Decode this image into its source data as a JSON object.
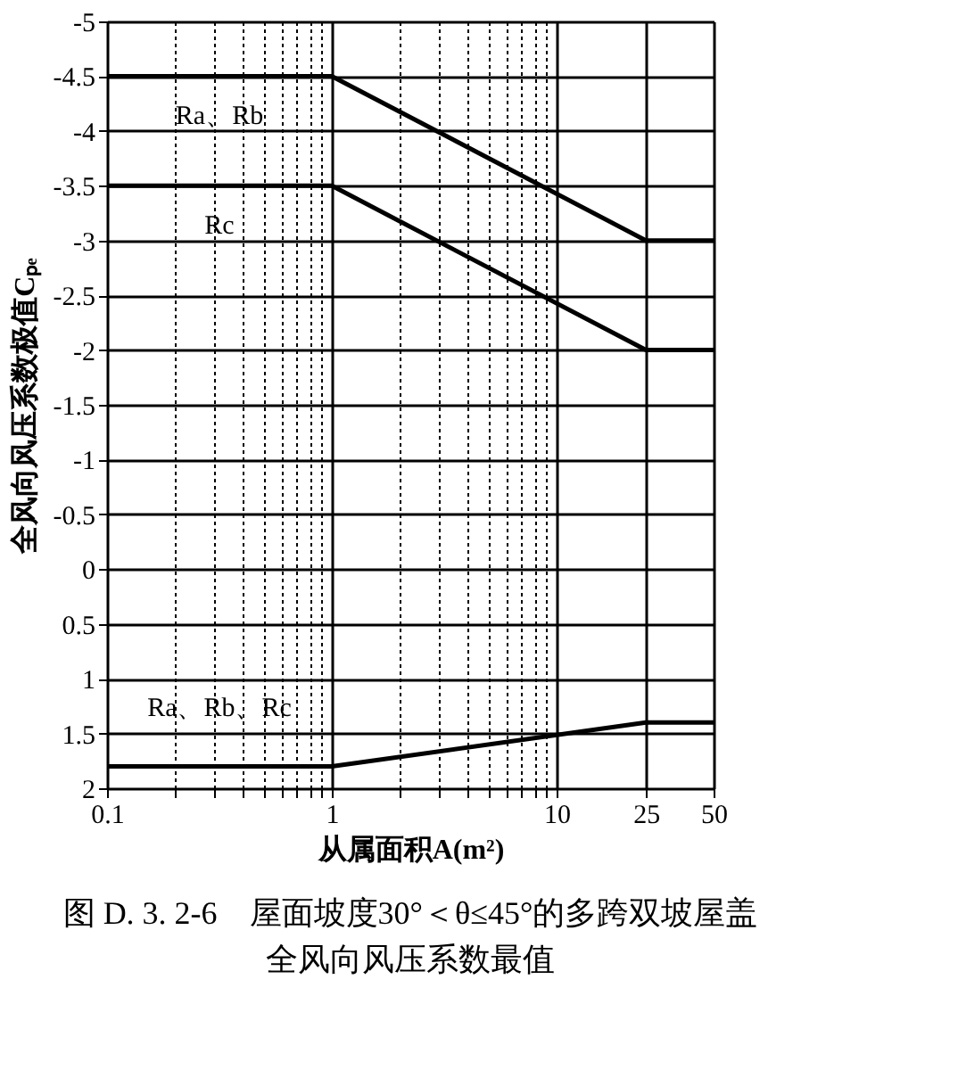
{
  "chart_data": {
    "type": "line",
    "title": "图 D. 3. 2-6　屋面坡度30°＜θ≤45°的多跨双坡屋盖全风向风压系数最值",
    "xlabel": "从属面积A(m²)",
    "ylabel": "全风向风压系数极值Cₚₑ",
    "log": "x",
    "xlim": [
      0.1,
      50
    ],
    "xticks": [
      0.1,
      {
        "value": 0.2,
        "label": null
      },
      {
        "value": 0.3,
        "label": null
      },
      {
        "value": 0.4,
        "label": null
      },
      {
        "value": 0.5,
        "label": null
      },
      {
        "value": 0.6,
        "label": null
      },
      {
        "value": 0.7,
        "label": null
      },
      {
        "value": 0.8,
        "label": null
      },
      {
        "value": 0.9,
        "label": null
      },
      1,
      {
        "value": 2,
        "label": null
      },
      {
        "value": 3,
        "label": null
      },
      {
        "value": 4,
        "label": null
      },
      {
        "value": 5,
        "label": null
      },
      {
        "value": 6,
        "label": null
      },
      {
        "value": 7,
        "label": null
      },
      {
        "value": 8,
        "label": null
      },
      {
        "value": 9,
        "label": null
      },
      10,
      25,
      50
    ],
    "ylim": [
      2,
      -5
    ],
    "yticks": [
      -5,
      -4.5,
      -4,
      -3.5,
      -3,
      -2.5,
      -2,
      -1.5,
      -1,
      -0.5,
      0,
      0.5,
      1,
      1.5,
      2
    ],
    "grid": true,
    "marker": "none",
    "line_style": "solid",
    "series": [
      {
        "name": "Ra、Rb",
        "color": "#000000",
        "x": [
          0.1,
          1,
          25,
          50
        ],
        "values": [
          -4.5,
          -4.5,
          -3,
          -3
        ]
      },
      {
        "name": "Rc",
        "color": "#000000",
        "x": [
          0.1,
          1,
          25,
          50
        ],
        "values": [
          -3.5,
          -3.5,
          -2,
          -2
        ]
      },
      {
        "name": "Ra、Rb、Rc",
        "color": "#000000",
        "x": [
          0.1,
          1,
          25,
          50
        ],
        "values": [
          1.8,
          1.8,
          1.4,
          1.4
        ]
      }
    ]
  }
}
